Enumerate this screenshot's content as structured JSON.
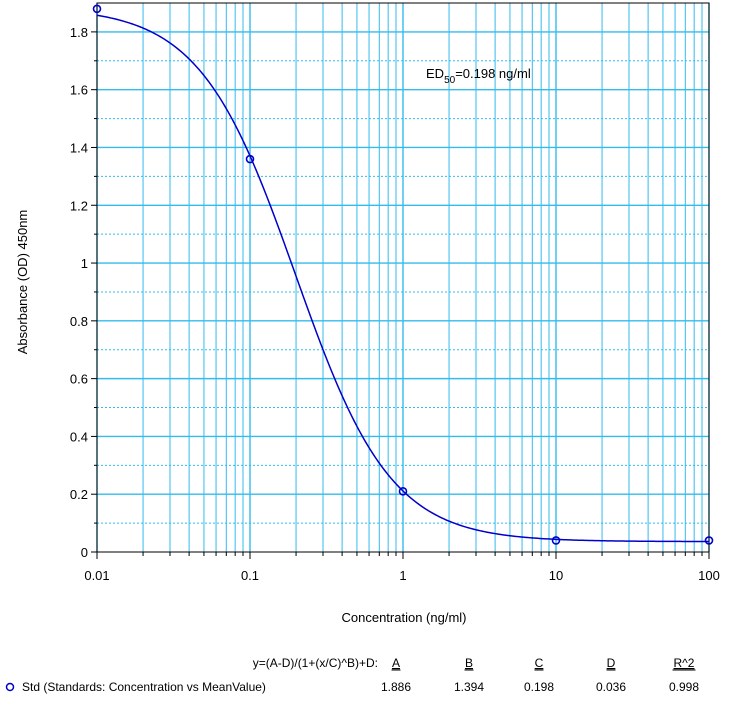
{
  "chart_data": {
    "type": "scatter",
    "xlabel": "Concentration (ng/ml)",
    "ylabel": "Absorbance (OD) 450nm",
    "x_scale": "log",
    "xlim": [
      0.01,
      100
    ],
    "ylim": [
      0,
      1.9
    ],
    "x_ticks": [
      "0.01",
      "0.1",
      "1",
      "10",
      "100"
    ],
    "y_ticks": [
      "0",
      "0.2",
      "0.4",
      "0.6",
      "0.8",
      "1",
      "1.2",
      "1.4",
      "1.6",
      "1.8"
    ],
    "grid": true,
    "annotation": {
      "prefix": "ED",
      "subscript": "50",
      "suffix": "=0.198 ng/ml"
    },
    "series": [
      {
        "name": "Std (Standards: Concentration vs MeanValue)",
        "color": "#0000cc",
        "points": [
          {
            "x": 0.01,
            "y": 1.88
          },
          {
            "x": 0.1,
            "y": 1.36
          },
          {
            "x": 1,
            "y": 0.21
          },
          {
            "x": 10,
            "y": 0.04
          },
          {
            "x": 100,
            "y": 0.04
          }
        ],
        "fit": {
          "A": 1.886,
          "B": 1.394,
          "C": 0.198,
          "D": 0.036
        }
      }
    ],
    "fit_table": {
      "equation": "y=(A-D)/(1+(x/C)^B)+D:",
      "headers": [
        "A",
        "B",
        "C",
        "D",
        "R^2"
      ],
      "row_label": "Std (Standards: Concentration vs MeanValue)",
      "values": [
        "1.886",
        "1.394",
        "0.198",
        "0.036",
        "0.998"
      ]
    },
    "colors": {
      "grid": "#33bbee",
      "curve": "#0000cc"
    }
  }
}
